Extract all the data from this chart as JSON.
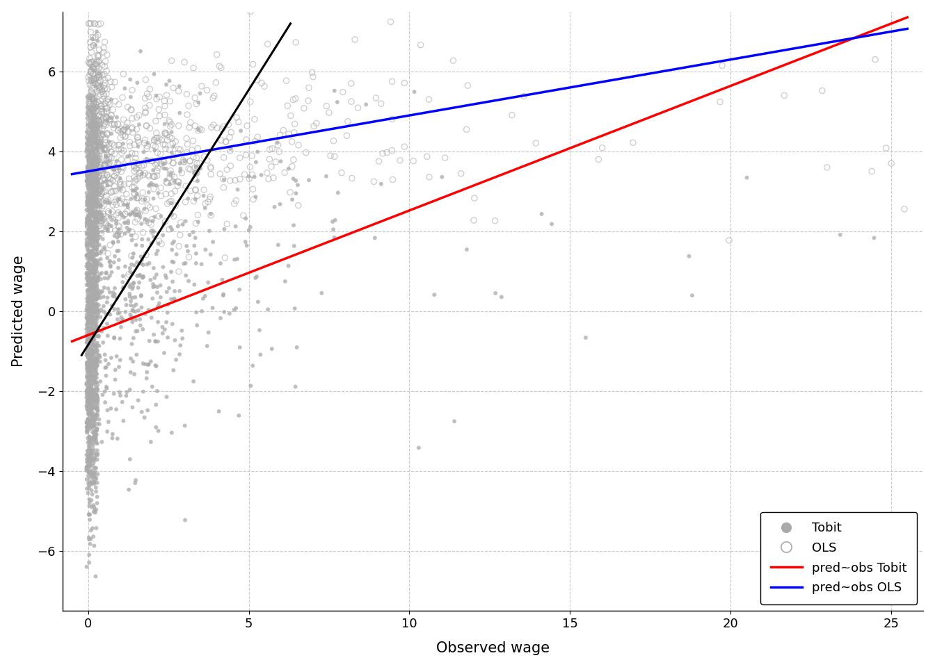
{
  "title": "",
  "xlabel": "Observed wage",
  "ylabel": "Predicted wage",
  "xlim": [
    -0.8,
    26
  ],
  "ylim": [
    -7.5,
    7.5
  ],
  "xticks": [
    0,
    5,
    10,
    15,
    20,
    25
  ],
  "yticks": [
    -6,
    -4,
    -2,
    0,
    2,
    4,
    6
  ],
  "background_color": "#ffffff",
  "plot_bg_color": "#ffffff",
  "grid_color": "#c8c8c8",
  "point_color_tobit": "#aaaaaa",
  "point_color_ols": "#aaaaaa",
  "tobit_alpha": 0.75,
  "ols_alpha": 0.6,
  "point_size_tobit": 18,
  "point_size_ols": 35,
  "red_line_x0": 0,
  "red_line_y0": -0.6,
  "red_line_x1": 25,
  "red_line_y1": 7.2,
  "blue_line_x0": 0,
  "blue_line_y0": 3.5,
  "blue_line_x1": 25,
  "blue_line_y1": 7.0,
  "black_line_x0": -0.2,
  "black_line_y0": -1.1,
  "black_line_x1": 6.3,
  "black_line_y1": 7.2,
  "legend_fontsize": 13,
  "axis_label_size": 15,
  "tick_label_size": 13
}
